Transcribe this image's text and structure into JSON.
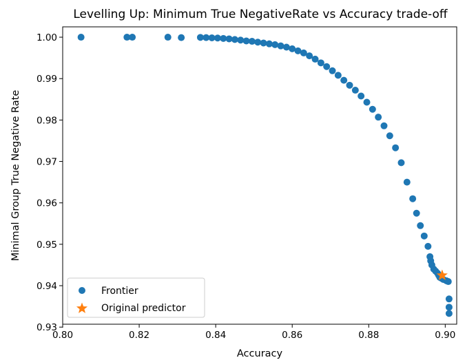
{
  "chart_data": {
    "type": "scatter",
    "title": "Levelling Up: Minimum True NegativeRate vs Accuracy trade-off",
    "xlabel": "Accuracy",
    "ylabel": "Minimal Group True Negative Rate",
    "xlim": [
      0.8,
      0.903
    ],
    "ylim": [
      0.9307,
      1.0025
    ],
    "xticks": [
      0.8,
      0.82,
      0.84,
      0.86,
      0.88,
      0.9
    ],
    "xtick_labels": [
      "0.80",
      "0.82",
      "0.84",
      "0.86",
      "0.88",
      "0.90"
    ],
    "yticks": [
      0.93,
      0.94,
      0.95,
      0.96,
      0.97,
      0.98,
      0.99,
      1.0
    ],
    "ytick_labels": [
      "0.93",
      "0.94",
      "0.95",
      "0.96",
      "0.97",
      "0.98",
      "0.99",
      "1.00"
    ],
    "grid": false,
    "legend": {
      "position": "lower-left",
      "entries": [
        "Frontier",
        "Original predictor"
      ]
    },
    "series": [
      {
        "name": "Frontier",
        "marker": "circle",
        "color": "#1f77b4",
        "x": [
          0.8048,
          0.8168,
          0.8182,
          0.8275,
          0.831,
          0.836,
          0.8375,
          0.839,
          0.8405,
          0.842,
          0.8435,
          0.845,
          0.8465,
          0.848,
          0.8495,
          0.851,
          0.8525,
          0.854,
          0.8555,
          0.857,
          0.8585,
          0.86,
          0.8615,
          0.863,
          0.8645,
          0.866,
          0.8675,
          0.869,
          0.8705,
          0.872,
          0.8735,
          0.875,
          0.8765,
          0.878,
          0.8795,
          0.881,
          0.8825,
          0.884,
          0.8855,
          0.887,
          0.8885,
          0.89,
          0.8915,
          0.8925,
          0.8935,
          0.8945,
          0.8955,
          0.896,
          0.8962,
          0.8965,
          0.897,
          0.8975,
          0.898,
          0.8983,
          0.8986,
          0.899,
          0.8995,
          0.9003,
          0.9008,
          0.901,
          0.901,
          0.901
        ],
        "y": [
          1.0,
          1.0,
          1.0,
          1.0,
          0.9999,
          0.99995,
          0.9999,
          0.99985,
          0.9998,
          0.9997,
          0.9996,
          0.99945,
          0.9993,
          0.9991,
          0.999,
          0.9988,
          0.9986,
          0.9984,
          0.9982,
          0.9979,
          0.9976,
          0.9972,
          0.9967,
          0.9962,
          0.9955,
          0.9947,
          0.9938,
          0.9929,
          0.9919,
          0.9908,
          0.9896,
          0.9884,
          0.9872,
          0.9858,
          0.9843,
          0.9826,
          0.9807,
          0.9786,
          0.9762,
          0.9733,
          0.9697,
          0.965,
          0.961,
          0.9575,
          0.9545,
          0.952,
          0.9495,
          0.947,
          0.946,
          0.945,
          0.944,
          0.9435,
          0.943,
          0.9425,
          0.942,
          0.9418,
          0.9415,
          0.9412,
          0.941,
          0.9368,
          0.9348,
          0.9333
        ]
      },
      {
        "name": "Original predictor",
        "marker": "star",
        "color": "#ff7f0e",
        "x": [
          0.8992
        ],
        "y": [
          0.9425
        ]
      }
    ]
  }
}
